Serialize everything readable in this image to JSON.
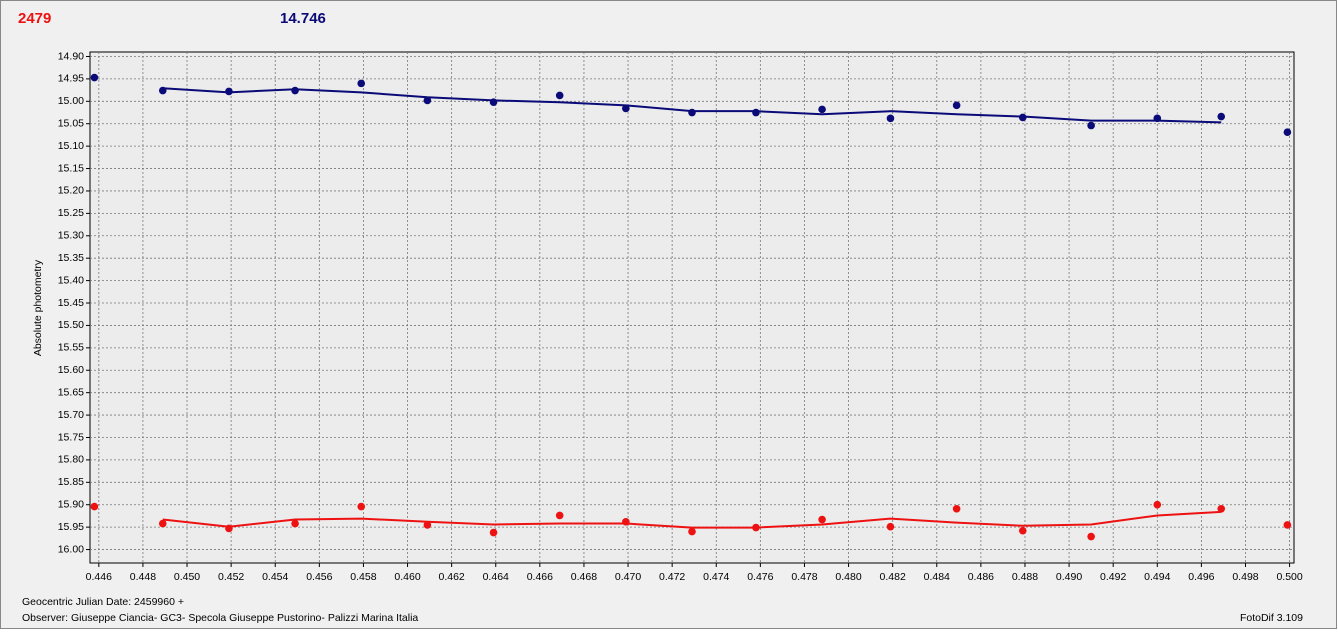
{
  "chart_data": {
    "type": "scatter",
    "header_left": "2479",
    "header_right": "14.746",
    "y_label": "Absolute photometry",
    "footer_date": "Geocentric Julian Date: 2459960 +",
    "footer_observer": "Observer: Giuseppe Ciancia- GC3- Specola Giuseppe Pustorino- Palizzi Marina Italia",
    "footer_software": "FotoDif 3.109",
    "grid": true,
    "xlim": [
      0.4456,
      0.5002
    ],
    "ylim": [
      16.03,
      14.89
    ],
    "xticks": [
      0.446,
      0.448,
      {
        "value": 0.45,
        "label": "0.450"
      },
      0.452,
      0.454,
      0.456,
      0.458,
      {
        "value": 0.46,
        "label": "0.460"
      },
      0.462,
      0.464,
      0.466,
      0.468,
      {
        "value": 0.47,
        "label": "0.470"
      },
      0.472,
      0.474,
      0.476,
      0.478,
      {
        "value": 0.48,
        "label": "0.480"
      },
      0.482,
      0.484,
      0.486,
      0.488,
      {
        "value": 0.49,
        "label": "0.490"
      },
      0.492,
      0.494,
      0.496,
      0.498,
      {
        "value": 0.5,
        "label": "0.500"
      }
    ],
    "yticks": [
      {
        "value": 14.9,
        "label": "14.90"
      },
      14.95,
      {
        "value": 15.0,
        "label": "15.00"
      },
      15.05,
      {
        "value": 15.1,
        "label": "15.10"
      },
      15.15,
      {
        "value": 15.2,
        "label": "15.20"
      },
      15.25,
      {
        "value": 15.3,
        "label": "15.30"
      },
      15.35,
      {
        "value": 15.4,
        "label": "15.40"
      },
      15.45,
      {
        "value": 15.5,
        "label": "15.50"
      },
      15.55,
      {
        "value": 15.6,
        "label": "15.60"
      },
      15.65,
      {
        "value": 15.7,
        "label": "15.70"
      },
      15.75,
      {
        "value": 15.8,
        "label": "15.80"
      },
      15.85,
      {
        "value": 15.9,
        "label": "15.90"
      },
      15.95,
      {
        "value": 16.0,
        "label": "16.00"
      }
    ],
    "x": [
      0.4458,
      0.4489,
      0.4519,
      0.4549,
      0.4579,
      0.4609,
      0.4639,
      0.4669,
      0.4699,
      0.4729,
      0.4758,
      0.4788,
      0.4819,
      0.4849,
      0.4879,
      0.491,
      0.494,
      0.4969,
      0.4999
    ],
    "series": [
      {
        "color": "#0a0a78",
        "values": [
          14.947,
          14.976,
          14.978,
          14.976,
          14.96,
          14.998,
          15.002,
          14.987,
          15.016,
          15.025,
          15.025,
          15.018,
          15.038,
          15.009,
          15.036,
          15.054,
          15.038,
          15.034,
          15.069
        ]
      },
      {
        "color": "#ee1111",
        "values": [
          15.904,
          15.942,
          15.953,
          15.942,
          15.904,
          15.945,
          15.962,
          15.924,
          15.938,
          15.96,
          15.951,
          15.933,
          15.949,
          15.909,
          15.958,
          15.971,
          15.9,
          15.909,
          15.945
        ]
      }
    ],
    "fit_x": [
      0.4489,
      0.4519,
      0.4549,
      0.4579,
      0.4609,
      0.4639,
      0.4669,
      0.4699,
      0.4729,
      0.4758,
      0.4788,
      0.4819,
      0.4849,
      0.4879,
      0.491,
      0.494,
      0.4969
    ],
    "fits": [
      {
        "color": "#0a0a78",
        "values": [
          14.971,
          14.98,
          14.973,
          14.98,
          14.991,
          14.998,
          15.002,
          15.009,
          15.022,
          15.022,
          15.029,
          15.022,
          15.029,
          15.034,
          15.043,
          15.043,
          15.047
        ]
      },
      {
        "color": "#ee1111",
        "values": [
          15.933,
          15.949,
          15.933,
          15.931,
          15.938,
          15.944,
          15.942,
          15.942,
          15.951,
          15.951,
          15.944,
          15.931,
          15.94,
          15.947,
          15.944,
          15.924,
          15.916
        ]
      }
    ]
  }
}
